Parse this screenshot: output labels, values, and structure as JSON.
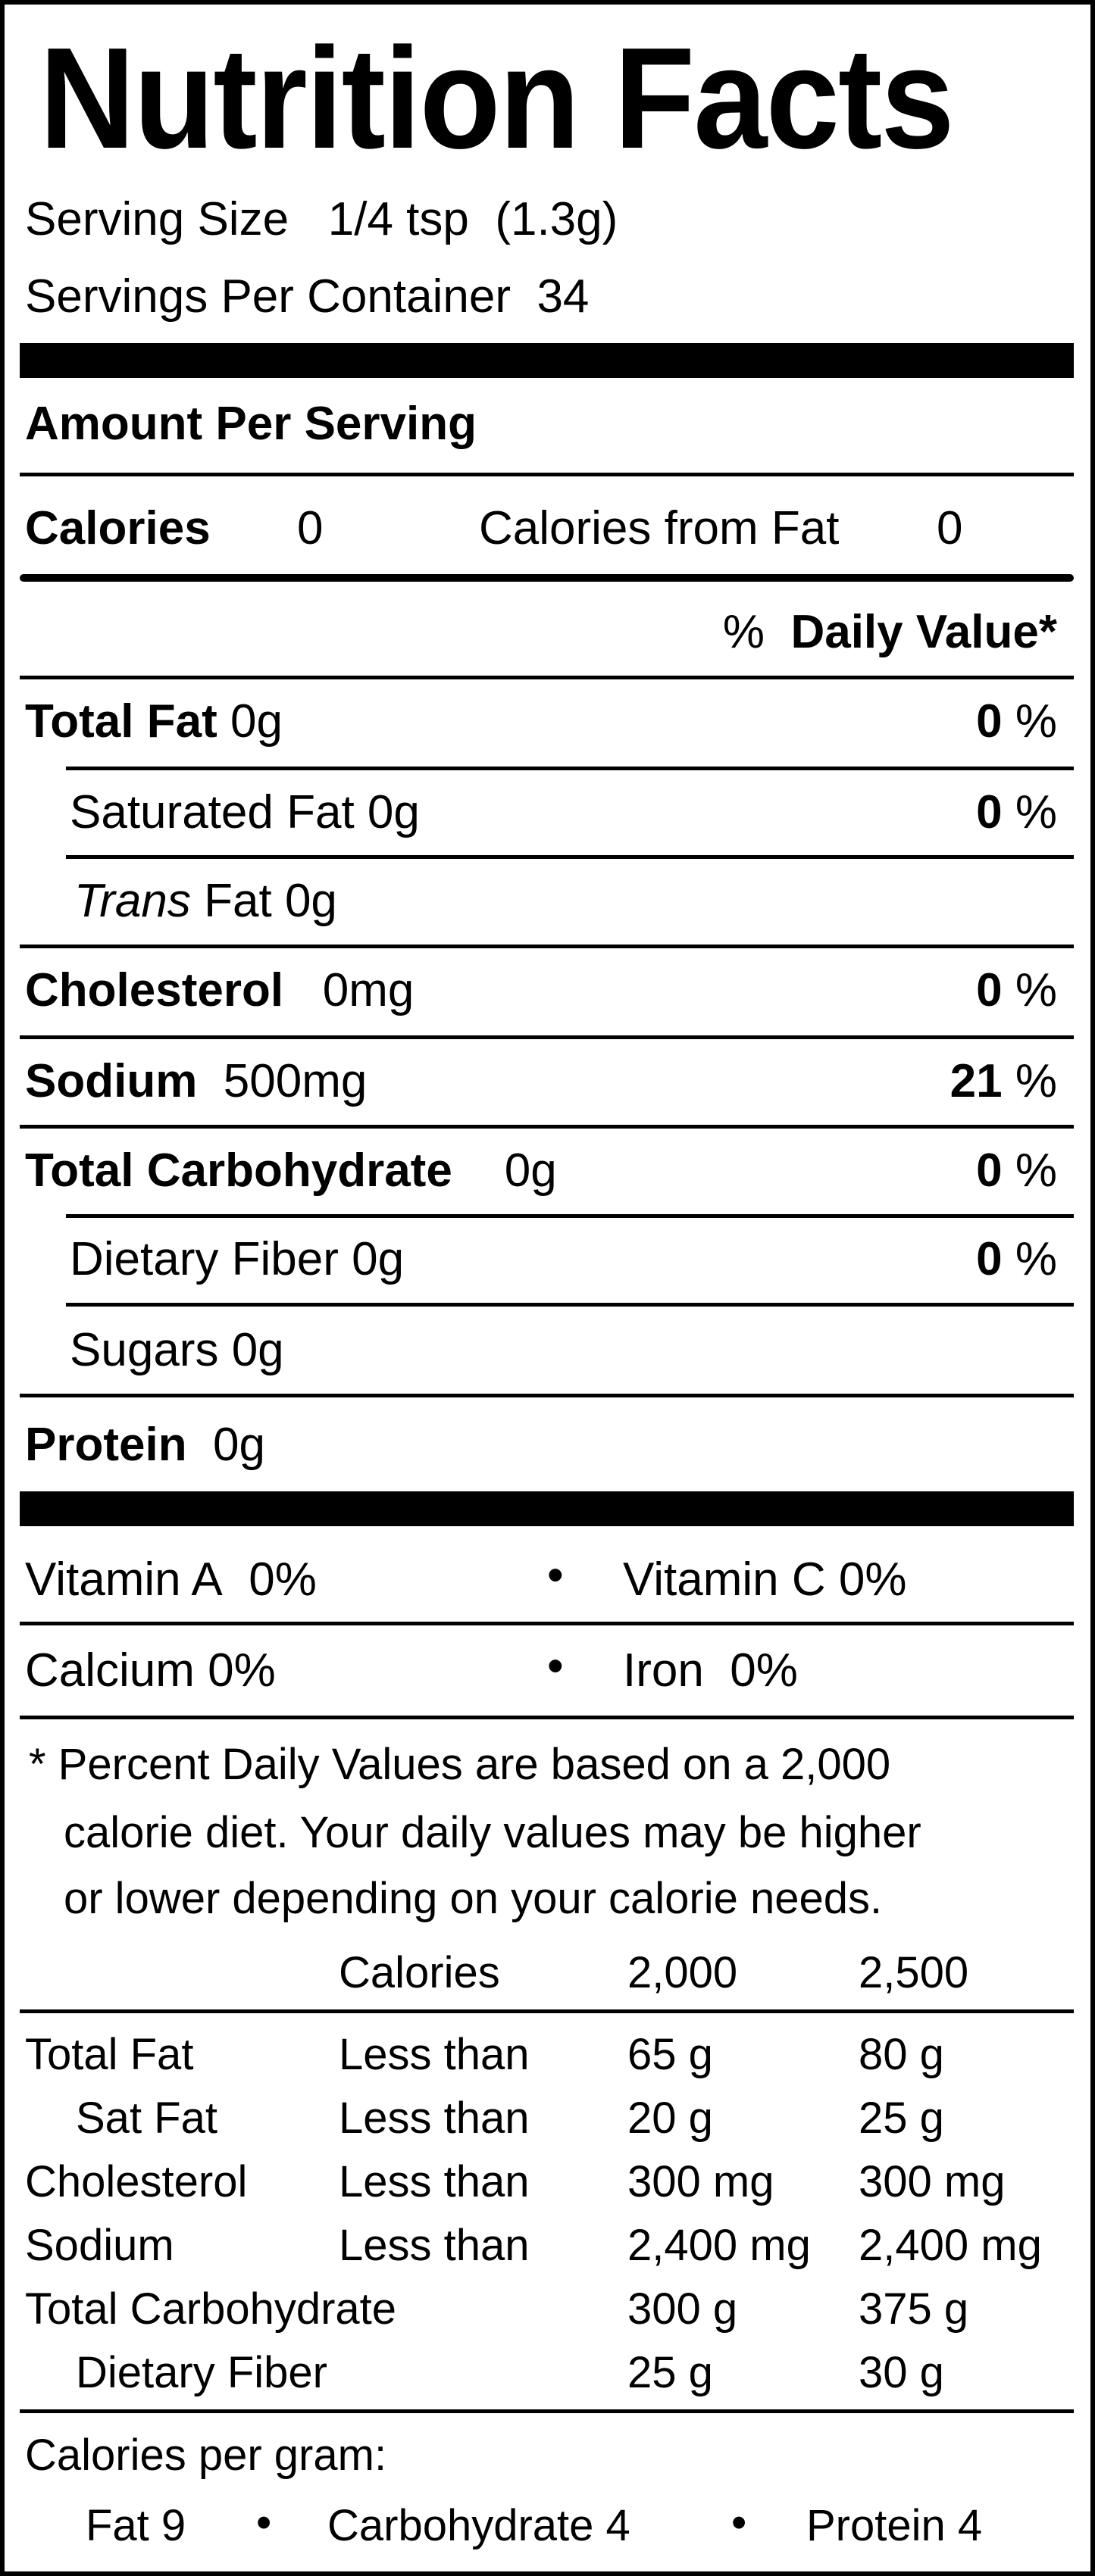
{
  "title": "Nutrition Facts",
  "serving": {
    "size_label": "Serving Size",
    "size_value": "1/4 tsp  (1.3g)",
    "per_container_label": "Servings Per Container",
    "per_container_value": "34"
  },
  "amount_per_serving": "Amount Per Serving",
  "calories": {
    "label": "Calories",
    "value": "0",
    "from_fat_label": "Calories from Fat",
    "from_fat_value": "0"
  },
  "daily_value_header": {
    "percent": "%",
    "label": "Daily Value*"
  },
  "nutrients": [
    {
      "label": "Total Fat",
      "amount": "0g",
      "dv": "0",
      "pct": "%"
    },
    {
      "label": "Saturated Fat",
      "amount": "0g",
      "dv": "0",
      "pct": "%"
    },
    {
      "label_italic": "Trans",
      "label": "Fat",
      "amount": "0g"
    },
    {
      "label": "Cholesterol",
      "amount": "0mg",
      "dv": "0",
      "pct": "%"
    },
    {
      "label": "Sodium",
      "amount": "500mg",
      "dv": "21",
      "pct": "%"
    },
    {
      "label": "Total Carbohydrate",
      "amount": "0g",
      "dv": "0",
      "pct": "%"
    },
    {
      "label": "Dietary Fiber",
      "amount": "0g",
      "dv": "0",
      "pct": "%"
    },
    {
      "label": "Sugars",
      "amount": "0g"
    },
    {
      "label": "Protein",
      "amount": "0g"
    }
  ],
  "vitamins": [
    {
      "label": "Vitamin A",
      "value": "0%"
    },
    {
      "label": "Vitamin C",
      "value": "0%"
    },
    {
      "label": "Calcium",
      "value": "0%"
    },
    {
      "label": "Iron",
      "value": "0%"
    }
  ],
  "bullet": "•",
  "footnote": [
    "* Percent Daily Values are based on a 2,000",
    "calorie diet. Your daily values may be higher",
    "or lower depending on your calorie needs."
  ],
  "dv_table": {
    "header": [
      "Calories",
      "2,000",
      "2,500"
    ],
    "rows": [
      [
        "Total Fat",
        "Less than",
        "65 g",
        "80 g"
      ],
      [
        "Sat Fat",
        "Less than",
        "20 g",
        "25 g"
      ],
      [
        "Cholesterol",
        "Less than",
        "300 mg",
        "300 mg"
      ],
      [
        "Sodium",
        "Less than",
        "2,400 mg",
        "2,400 mg"
      ],
      [
        "Total Carbohydrate",
        "",
        "300 g",
        "375 g"
      ],
      [
        "Dietary Fiber",
        "",
        "25 g",
        "30 g"
      ]
    ]
  },
  "calories_per_gram": {
    "label": "Calories per gram:",
    "items": [
      "Fat 9",
      "Carbohydrate 4",
      "Protein 4"
    ]
  }
}
